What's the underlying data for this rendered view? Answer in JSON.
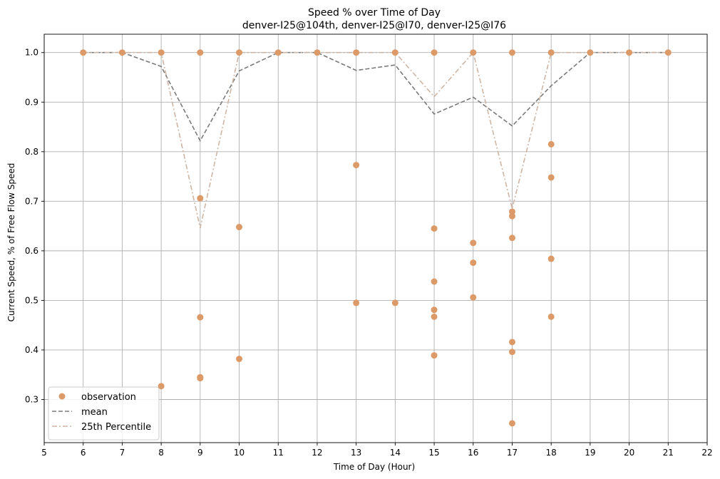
{
  "chart_data": {
    "type": "scatter",
    "title": "Speed % over Time of Day",
    "subtitle": "denver-I25@104th, denver-I25@I70, denver-I25@I76",
    "xlabel": "Time of Day (Hour)",
    "ylabel": "Current Speed, % of Free Flow Speed",
    "xlim": [
      5,
      22
    ],
    "ylim": [
      0.213,
      1.037
    ],
    "xticks": [
      5,
      6,
      7,
      8,
      9,
      10,
      11,
      12,
      13,
      14,
      15,
      16,
      17,
      18,
      19,
      20,
      21,
      22
    ],
    "yticks": [
      0.3,
      0.4,
      0.5,
      0.6,
      0.7,
      0.8,
      0.9,
      1.0
    ],
    "ytick_labels": [
      "0.3",
      "0.4",
      "0.5",
      "0.6",
      "0.7",
      "0.8",
      "0.9",
      "1.0"
    ],
    "grid": true,
    "legend_position": "lower-left",
    "colors": {
      "observation": "#dc9a68",
      "mean": "#7a7a7a",
      "p25": "#cdb6a6"
    },
    "legend": [
      "observation",
      "mean",
      "25th Percentile"
    ],
    "observations": [
      [
        6,
        1.0
      ],
      [
        7,
        1.0
      ],
      [
        8,
        1.0
      ],
      [
        8,
        0.327
      ],
      [
        9,
        1.0
      ],
      [
        9,
        0.706
      ],
      [
        9,
        0.466
      ],
      [
        9,
        0.345
      ],
      [
        9,
        0.343
      ],
      [
        10,
        1.0
      ],
      [
        10,
        0.648
      ],
      [
        10,
        0.382
      ],
      [
        11,
        1.0
      ],
      [
        12,
        1.0
      ],
      [
        13,
        1.0
      ],
      [
        13,
        0.773
      ],
      [
        13,
        0.495
      ],
      [
        14,
        1.0
      ],
      [
        14,
        0.495
      ],
      [
        15,
        1.0
      ],
      [
        15,
        0.645
      ],
      [
        15,
        0.538
      ],
      [
        15,
        0.481
      ],
      [
        15,
        0.467
      ],
      [
        15,
        0.389
      ],
      [
        16,
        1.0
      ],
      [
        16,
        0.616
      ],
      [
        16,
        0.576
      ],
      [
        16,
        0.506
      ],
      [
        17,
        1.0
      ],
      [
        17,
        0.679
      ],
      [
        17,
        0.67
      ],
      [
        17,
        0.626
      ],
      [
        17,
        0.416
      ],
      [
        17,
        0.396
      ],
      [
        17,
        0.252
      ],
      [
        18,
        1.0
      ],
      [
        18,
        0.815
      ],
      [
        18,
        0.748
      ],
      [
        18,
        0.584
      ],
      [
        18,
        0.467
      ],
      [
        19,
        1.0
      ],
      [
        20,
        1.0
      ],
      [
        21,
        1.0
      ]
    ],
    "series": [
      {
        "name": "mean",
        "x": [
          6,
          7,
          8,
          9,
          10,
          11,
          12,
          13,
          14,
          15,
          16,
          17,
          18,
          19,
          20,
          21
        ],
        "values": [
          1.0,
          1.0,
          0.972,
          0.822,
          0.963,
          1.0,
          1.0,
          0.964,
          0.975,
          0.876,
          0.91,
          0.852,
          0.933,
          1.0,
          1.0,
          1.0
        ]
      },
      {
        "name": "25th Percentile",
        "x": [
          6,
          7,
          8,
          9,
          10,
          11,
          12,
          13,
          14,
          15,
          16,
          17,
          18,
          19,
          20,
          21
        ],
        "values": [
          1.0,
          1.0,
          1.0,
          0.646,
          1.0,
          1.0,
          1.0,
          1.0,
          1.0,
          0.911,
          1.0,
          0.685,
          1.0,
          1.0,
          1.0,
          1.0
        ]
      }
    ]
  }
}
